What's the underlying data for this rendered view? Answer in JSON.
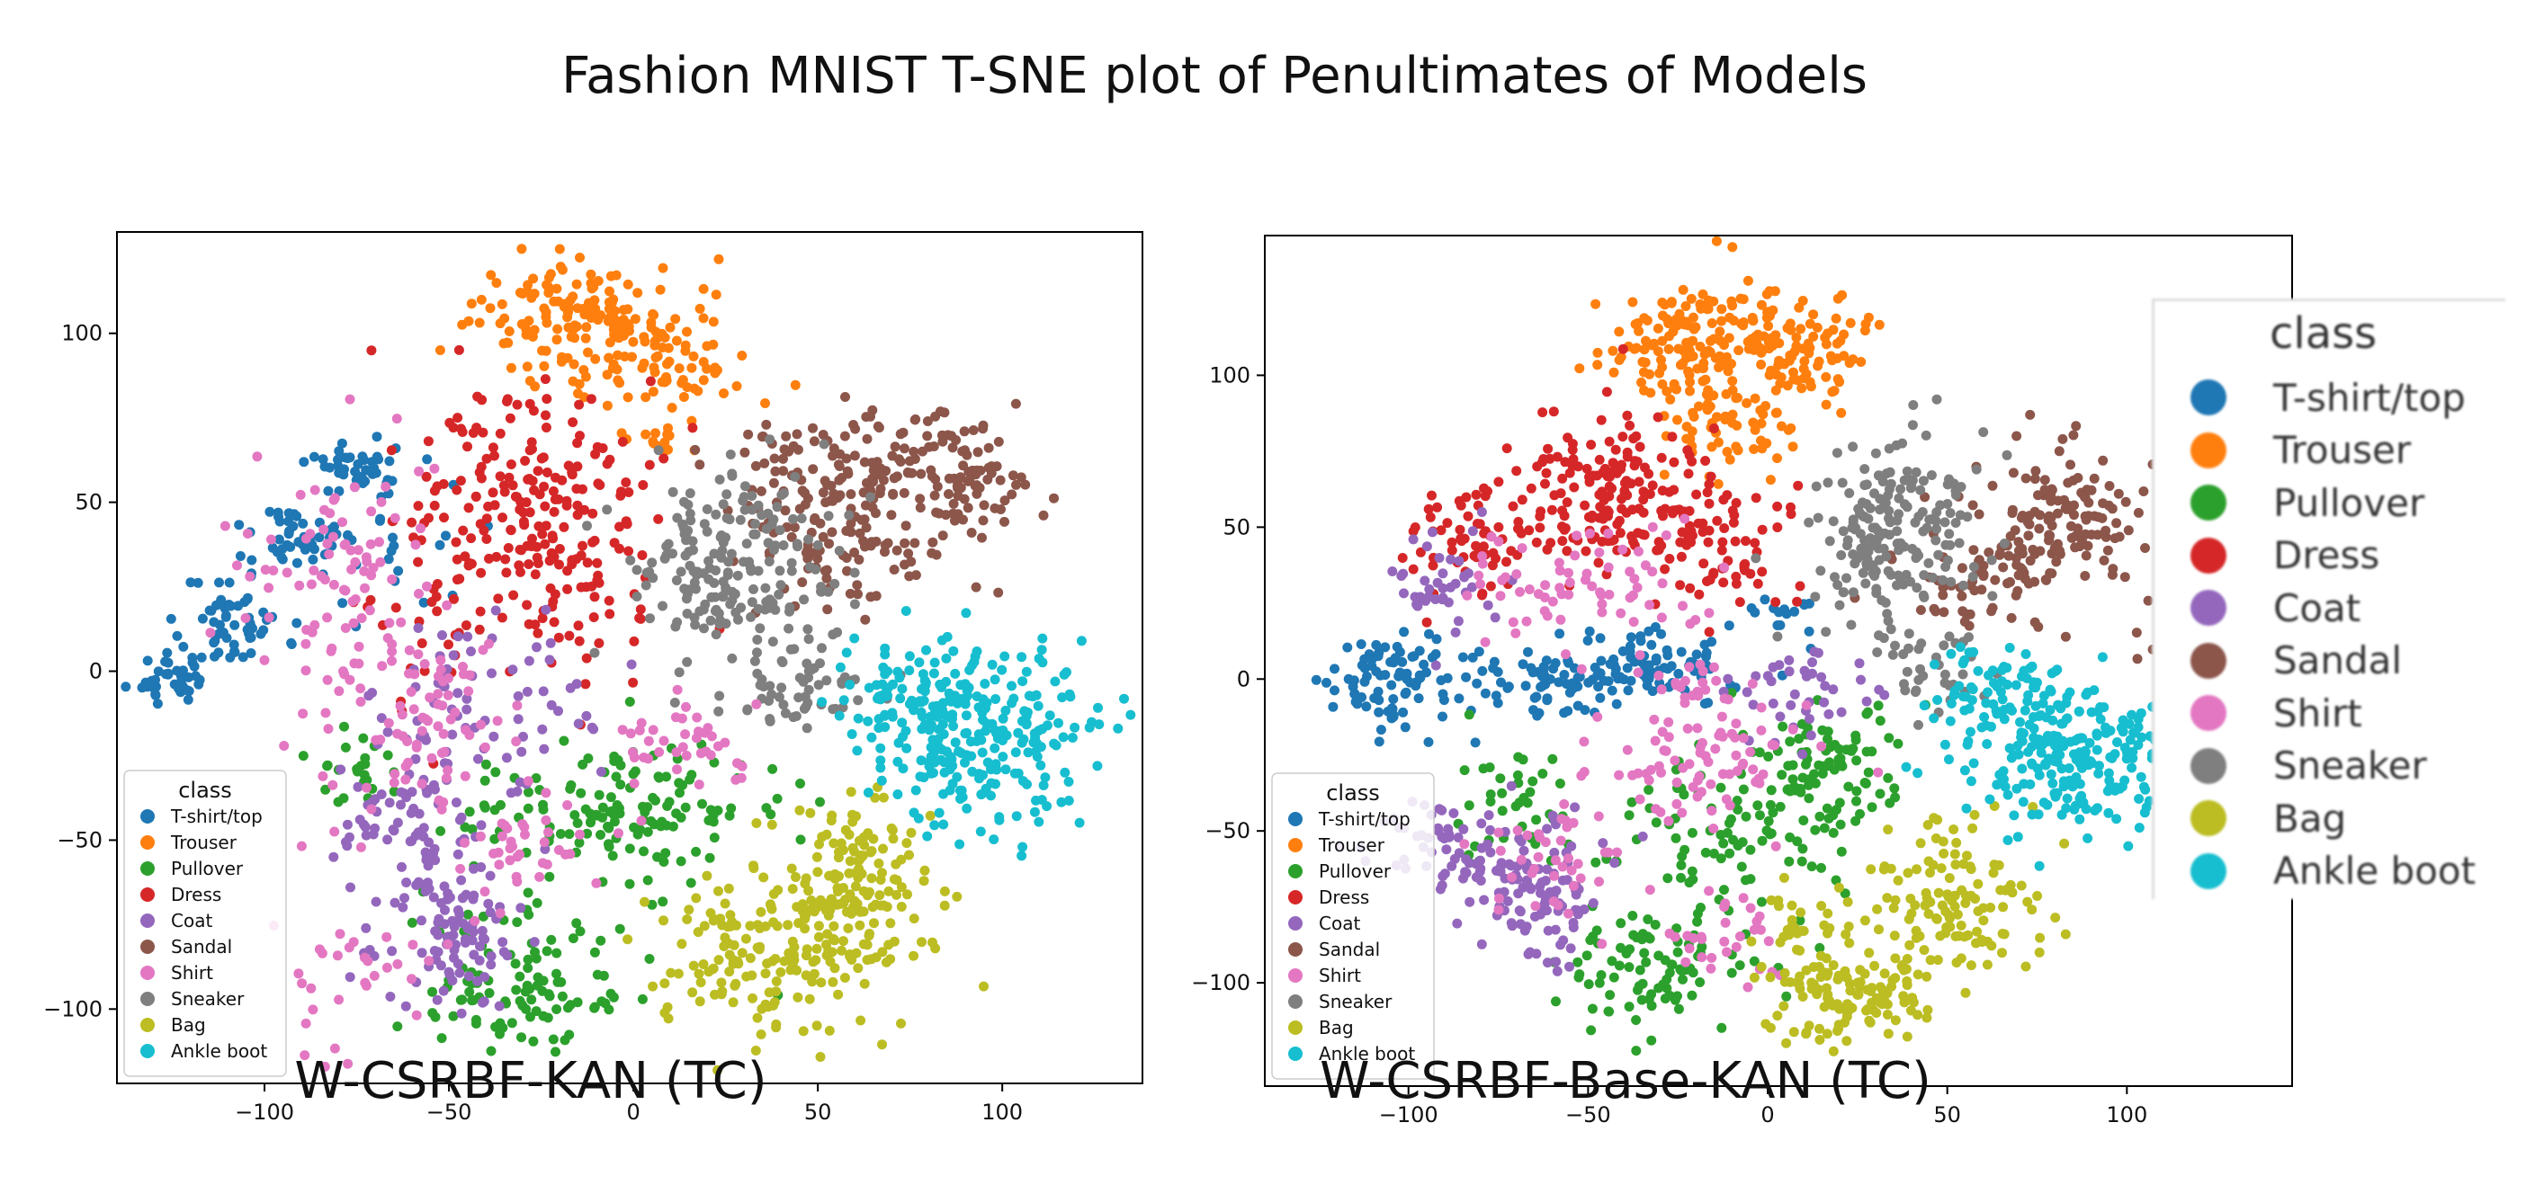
{
  "figure": {
    "title": "Fashion MNIST T-SNE plot of Penultimates of Models",
    "legend_title": "class",
    "classes": [
      {
        "name": "T-shirt/top",
        "color": "#1f77b4"
      },
      {
        "name": "Trouser",
        "color": "#ff7f0e"
      },
      {
        "name": "Pullover",
        "color": "#2ca02c"
      },
      {
        "name": "Dress",
        "color": "#d62728"
      },
      {
        "name": "Coat",
        "color": "#9467bd"
      },
      {
        "name": "Sandal",
        "color": "#8c564b"
      },
      {
        "name": "Shirt",
        "color": "#e377c2"
      },
      {
        "name": "Sneaker",
        "color": "#7f7f7f"
      },
      {
        "name": "Bag",
        "color": "#bcbd22"
      },
      {
        "name": "Ankle boot",
        "color": "#17becf"
      }
    ]
  },
  "chart_data": [
    {
      "type": "scatter",
      "title": "W-CSRBF-KAN (TC)",
      "xlabel": "",
      "ylabel": "",
      "xlim": [
        -140,
        138
      ],
      "ylim": [
        -122,
        130
      ],
      "xticks": [
        -100,
        -50,
        0,
        50,
        100
      ],
      "yticks": [
        -100,
        -50,
        0,
        50,
        100
      ],
      "legend_position": "lower-left",
      "grid": false,
      "clusters": [
        {
          "class": "T-shirt/top",
          "x": -125,
          "y": -1,
          "spread": [
            5,
            5
          ],
          "count": 40
        },
        {
          "class": "T-shirt/top",
          "x": -108,
          "y": 15,
          "spread": [
            7,
            7
          ],
          "count": 55
        },
        {
          "class": "T-shirt/top",
          "x": -90,
          "y": 38,
          "spread": [
            6,
            6
          ],
          "count": 45
        },
        {
          "class": "T-shirt/top",
          "x": -75,
          "y": 60,
          "spread": [
            8,
            4
          ],
          "count": 40
        },
        {
          "class": "T-shirt/top",
          "x": -60,
          "y": 45,
          "spread": [
            12,
            15
          ],
          "count": 20
        },
        {
          "class": "Trouser",
          "x": -20,
          "y": 107,
          "spread": [
            12,
            7
          ],
          "count": 110
        },
        {
          "class": "Trouser",
          "x": 5,
          "y": 93,
          "spread": [
            14,
            11
          ],
          "count": 110
        },
        {
          "class": "Trouser",
          "x": 8,
          "y": 70,
          "spread": [
            3,
            3
          ],
          "count": 10
        },
        {
          "class": "Pullover",
          "x": -5,
          "y": -40,
          "spread": [
            18,
            10
          ],
          "count": 140
        },
        {
          "class": "Pullover",
          "x": -30,
          "y": -97,
          "spread": [
            12,
            7
          ],
          "count": 70
        },
        {
          "class": "Pullover",
          "x": -75,
          "y": -30,
          "spread": [
            6,
            6
          ],
          "count": 25
        },
        {
          "class": "Pullover",
          "x": -30,
          "y": -80,
          "spread": [
            15,
            10
          ],
          "count": 40
        },
        {
          "class": "Dress",
          "x": -25,
          "y": 45,
          "spread": [
            16,
            20
          ],
          "count": 230
        },
        {
          "class": "Dress",
          "x": -55,
          "y": 20,
          "spread": [
            10,
            20
          ],
          "count": 30
        },
        {
          "class": "Coat",
          "x": -50,
          "y": -78,
          "spread": [
            10,
            10
          ],
          "count": 100
        },
        {
          "class": "Coat",
          "x": -60,
          "y": -45,
          "spread": [
            12,
            15
          ],
          "count": 80
        },
        {
          "class": "Coat",
          "x": -35,
          "y": -10,
          "spread": [
            15,
            15
          ],
          "count": 60
        },
        {
          "class": "Sandal",
          "x": 60,
          "y": 60,
          "spread": [
            16,
            9
          ],
          "count": 140
        },
        {
          "class": "Sandal",
          "x": 90,
          "y": 55,
          "spread": [
            9,
            8
          ],
          "count": 70
        },
        {
          "class": "Sandal",
          "x": 60,
          "y": 35,
          "spread": [
            14,
            9
          ],
          "count": 80
        },
        {
          "class": "Sneaker",
          "x": 27,
          "y": 30,
          "spread": [
            14,
            14
          ],
          "count": 200
        },
        {
          "class": "Sneaker",
          "x": 45,
          "y": -7,
          "spread": [
            12,
            7
          ],
          "count": 50
        },
        {
          "class": "Shirt",
          "x": -80,
          "y": 30,
          "spread": [
            15,
            15
          ],
          "count": 80
        },
        {
          "class": "Shirt",
          "x": -60,
          "y": -15,
          "spread": [
            15,
            15
          ],
          "count": 90
        },
        {
          "class": "Shirt",
          "x": 15,
          "y": -20,
          "spread": [
            10,
            7
          ],
          "count": 40
        },
        {
          "class": "Shirt",
          "x": -30,
          "y": -50,
          "spread": [
            10,
            10
          ],
          "count": 40
        },
        {
          "class": "Shirt",
          "x": -75,
          "y": -90,
          "spread": [
            10,
            10
          ],
          "count": 30
        },
        {
          "class": "Bag",
          "x": 35,
          "y": -85,
          "spread": [
            14,
            13
          ],
          "count": 150
        },
        {
          "class": "Bag",
          "x": 60,
          "y": -65,
          "spread": [
            13,
            15
          ],
          "count": 160
        },
        {
          "class": "Ankle boot",
          "x": 95,
          "y": -20,
          "spread": [
            15,
            13
          ],
          "count": 250
        },
        {
          "class": "Ankle boot",
          "x": 75,
          "y": -5,
          "spread": [
            10,
            7
          ],
          "count": 60
        }
      ]
    },
    {
      "type": "scatter",
      "title": "W-CSRBF-Base-KAN (TC)",
      "xlabel": "",
      "ylabel": "",
      "xlim": [
        -140,
        146
      ],
      "ylim": [
        -134,
        146
      ],
      "xticks": [
        -100,
        -50,
        0,
        50,
        100
      ],
      "yticks": [
        -100,
        -50,
        0,
        50,
        100
      ],
      "legend_position": "lower-left",
      "grid": false,
      "clusters": [
        {
          "class": "T-shirt/top",
          "x": -105,
          "y": 0,
          "spread": [
            10,
            8
          ],
          "count": 90
        },
        {
          "class": "T-shirt/top",
          "x": -60,
          "y": 0,
          "spread": [
            15,
            6
          ],
          "count": 80
        },
        {
          "class": "T-shirt/top",
          "x": -30,
          "y": 5,
          "spread": [
            12,
            6
          ],
          "count": 60
        },
        {
          "class": "T-shirt/top",
          "x": 3,
          "y": 20,
          "spread": [
            5,
            4
          ],
          "count": 15
        },
        {
          "class": "Trouser",
          "x": -20,
          "y": 110,
          "spread": [
            12,
            10
          ],
          "count": 150
        },
        {
          "class": "Trouser",
          "x": 10,
          "y": 110,
          "spread": [
            10,
            10
          ],
          "count": 90
        },
        {
          "class": "Trouser",
          "x": -10,
          "y": 85,
          "spread": [
            12,
            10
          ],
          "count": 60
        },
        {
          "class": "Pullover",
          "x": 15,
          "y": -30,
          "spread": [
            12,
            10
          ],
          "count": 100
        },
        {
          "class": "Pullover",
          "x": -30,
          "y": -95,
          "spread": [
            13,
            10
          ],
          "count": 90
        },
        {
          "class": "Pullover",
          "x": -15,
          "y": -55,
          "spread": [
            15,
            12
          ],
          "count": 80
        },
        {
          "class": "Pullover",
          "x": -70,
          "y": -40,
          "spread": [
            10,
            10
          ],
          "count": 40
        },
        {
          "class": "Dress",
          "x": -45,
          "y": 60,
          "spread": [
            15,
            12
          ],
          "count": 180
        },
        {
          "class": "Dress",
          "x": -85,
          "y": 45,
          "spread": [
            10,
            8
          ],
          "count": 60
        },
        {
          "class": "Dress",
          "x": -10,
          "y": 40,
          "spread": [
            10,
            12
          ],
          "count": 60
        },
        {
          "class": "Coat",
          "x": -65,
          "y": -70,
          "spread": [
            12,
            12
          ],
          "count": 110
        },
        {
          "class": "Coat",
          "x": -90,
          "y": -55,
          "spread": [
            10,
            8
          ],
          "count": 50
        },
        {
          "class": "Coat",
          "x": -90,
          "y": 30,
          "spread": [
            8,
            8
          ],
          "count": 40
        },
        {
          "class": "Coat",
          "x": 10,
          "y": -5,
          "spread": [
            10,
            8
          ],
          "count": 40
        },
        {
          "class": "Sandal",
          "x": 80,
          "y": 50,
          "spread": [
            14,
            14
          ],
          "count": 150
        },
        {
          "class": "Sandal",
          "x": 120,
          "y": 15,
          "spread": [
            8,
            12
          ],
          "count": 80
        },
        {
          "class": "Sandal",
          "x": 55,
          "y": 30,
          "spread": [
            10,
            8
          ],
          "count": 40
        },
        {
          "class": "Sneaker",
          "x": 35,
          "y": 50,
          "spread": [
            12,
            15
          ],
          "count": 190
        },
        {
          "class": "Sneaker",
          "x": 45,
          "y": 5,
          "spread": [
            10,
            8
          ],
          "count": 40
        },
        {
          "class": "Shirt",
          "x": -50,
          "y": 30,
          "spread": [
            20,
            10
          ],
          "count": 70
        },
        {
          "class": "Shirt",
          "x": -20,
          "y": -30,
          "spread": [
            15,
            10
          ],
          "count": 70
        },
        {
          "class": "Shirt",
          "x": -60,
          "y": -60,
          "spread": [
            10,
            10
          ],
          "count": 40
        },
        {
          "class": "Shirt",
          "x": -10,
          "y": -85,
          "spread": [
            8,
            8
          ],
          "count": 30
        },
        {
          "class": "Shirt",
          "x": -20,
          "y": -5,
          "spread": [
            12,
            8
          ],
          "count": 30
        },
        {
          "class": "Bag",
          "x": 20,
          "y": -105,
          "spread": [
            12,
            7
          ],
          "count": 120
        },
        {
          "class": "Bag",
          "x": 50,
          "y": -75,
          "spread": [
            12,
            15
          ],
          "count": 130
        },
        {
          "class": "Bag",
          "x": 10,
          "y": -80,
          "spread": [
            8,
            6
          ],
          "count": 25
        },
        {
          "class": "Ankle boot",
          "x": 85,
          "y": -25,
          "spread": [
            17,
            12
          ],
          "count": 250
        },
        {
          "class": "Ankle boot",
          "x": 65,
          "y": 0,
          "spread": [
            10,
            8
          ],
          "count": 60
        }
      ]
    }
  ]
}
